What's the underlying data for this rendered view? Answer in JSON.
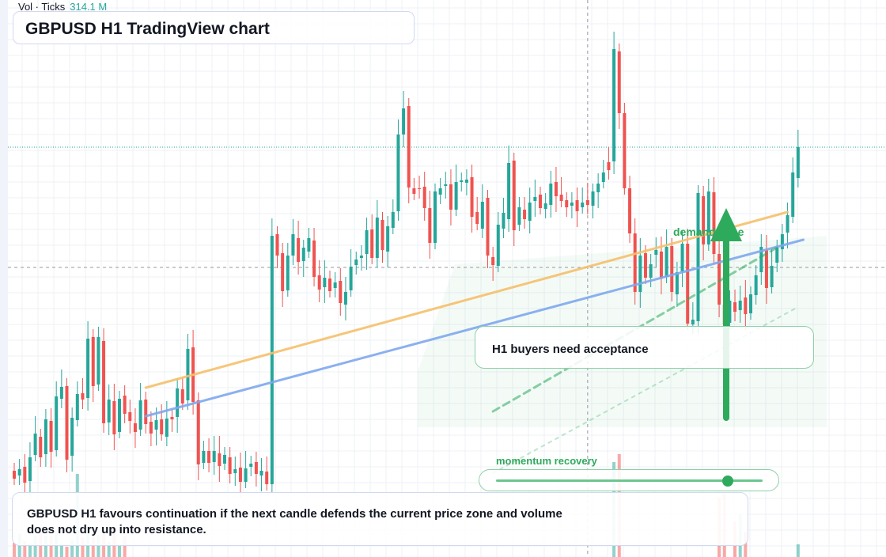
{
  "header": {
    "volume_label": "Vol · Ticks",
    "volume_value": "314.1 M",
    "title": "GBPUSD H1 TradingView chart"
  },
  "annotations": {
    "callout": "H1 buyers need acceptance",
    "demand_zone": "demand zone",
    "momentum": "momentum recovery",
    "momentum_level": 0.87,
    "note": "GBPUSD H1 favours continuation if the next candle defends the current price zone and volume does not dry up into resistance."
  },
  "colors": {
    "up": "#26a69a",
    "down": "#ef5350",
    "accent_green": "#2eaa5c",
    "trend_orange": "#f6c06c",
    "trend_blue": "#7fa8ee",
    "crosshair": "#9598a1",
    "last_price_line": "#26a69a"
  },
  "chart_data": {
    "type": "candlestick",
    "symbol": "GBPUSD",
    "timeframe": "H1",
    "price_scale": "arbitrary chart units (axis not labelled)",
    "candles": [
      [
        595,
        605
      ],
      [
        601,
        593
      ],
      [
        590,
        610
      ],
      [
        608,
        578
      ],
      [
        575,
        548
      ],
      [
        552,
        578
      ],
      [
        574,
        530
      ],
      [
        532,
        571
      ],
      [
        569,
        501
      ],
      [
        504,
        489
      ],
      [
        488,
        581
      ],
      [
        576,
        528
      ],
      [
        531,
        498
      ],
      [
        497,
        505
      ],
      [
        503,
        428
      ],
      [
        426,
        488
      ],
      [
        486,
        426
      ],
      [
        431,
        535
      ],
      [
        534,
        505
      ],
      [
        507,
        549
      ],
      [
        546,
        504
      ],
      [
        500,
        523
      ],
      [
        521,
        532
      ],
      [
        535,
        546
      ],
      [
        543,
        506
      ],
      [
        505,
        536
      ],
      [
        533,
        548
      ],
      [
        543,
        531
      ],
      [
        530,
        549
      ],
      [
        552,
        529
      ],
      [
        527,
        530
      ],
      [
        527,
        491
      ],
      [
        492,
        510
      ],
      [
        506,
        441
      ],
      [
        439,
        508
      ],
      [
        506,
        587
      ],
      [
        585,
        570
      ],
      [
        570,
        585
      ],
      [
        584,
        570
      ],
      [
        573,
        589
      ],
      [
        586,
        575
      ],
      [
        578,
        599
      ],
      [
        598,
        593
      ],
      [
        591,
        609
      ],
      [
        609,
        592
      ],
      [
        590,
        586
      ],
      [
        584,
        599
      ],
      [
        601,
        595
      ],
      [
        596,
        612
      ],
      [
        612,
        298
      ],
      [
        296,
        323
      ],
      [
        320,
        368
      ],
      [
        367,
        323
      ],
      [
        323,
        296
      ],
      [
        301,
        331
      ],
      [
        330,
        313
      ],
      [
        318,
        301
      ],
      [
        304,
        350
      ],
      [
        348,
        366
      ],
      [
        363,
        351
      ],
      [
        352,
        368
      ],
      [
        364,
        357
      ],
      [
        355,
        383
      ],
      [
        385,
        369
      ],
      [
        367,
        337
      ],
      [
        335,
        328
      ],
      [
        326,
        323
      ],
      [
        321,
        291
      ],
      [
        290,
        326
      ],
      [
        326,
        275
      ],
      [
        278,
        316
      ],
      [
        318,
        286
      ],
      [
        288,
        268
      ],
      [
        267,
        170
      ],
      [
        170,
        137
      ],
      [
        134,
        237
      ],
      [
        238,
        245
      ],
      [
        238,
        239
      ],
      [
        236,
        263
      ],
      [
        263,
        307
      ],
      [
        307,
        242
      ],
      [
        246,
        238
      ],
      [
        235,
        233
      ],
      [
        233,
        265
      ],
      [
        265,
        230
      ],
      [
        230,
        228
      ],
      [
        231,
        227
      ],
      [
        224,
        274
      ],
      [
        268,
        283
      ],
      [
        289,
        255
      ],
      [
        250,
        323
      ],
      [
        325,
        335
      ],
      [
        336,
        284
      ],
      [
        289,
        269
      ],
      [
        277,
        206
      ],
      [
        203,
        291
      ],
      [
        284,
        262
      ],
      [
        265,
        277
      ],
      [
        279,
        256
      ],
      [
        254,
        249
      ],
      [
        246,
        263
      ],
      [
        264,
        257
      ],
      [
        259,
        232
      ],
      [
        230,
        248
      ],
      [
        246,
        254
      ],
      [
        253,
        262
      ],
      [
        260,
        256
      ],
      [
        253,
        267
      ],
      [
        262,
        256
      ],
      [
        253,
        259
      ],
      [
        260,
        242
      ],
      [
        243,
        232
      ],
      [
        230,
        218
      ],
      [
        205,
        215
      ],
      [
        204,
        62
      ],
      [
        65,
        143
      ],
      [
        143,
        238
      ],
      [
        238,
        295
      ],
      [
        295,
        369
      ],
      [
        369,
        323
      ],
      [
        320,
        351
      ],
      [
        351,
        334
      ],
      [
        322,
        316
      ],
      [
        318,
        352
      ],
      [
        350,
        312
      ],
      [
        311,
        369
      ],
      [
        372,
        344
      ],
      [
        343,
        308
      ],
      [
        308,
        409
      ],
      [
        410,
        404
      ],
      [
        406,
        244
      ],
      [
        248,
        309
      ],
      [
        309,
        242
      ],
      [
        243,
        321
      ],
      [
        321,
        385
      ],
      [
        385,
        410
      ],
      [
        408,
        380
      ],
      [
        382,
        394
      ],
      [
        392,
        380
      ],
      [
        376,
        397
      ],
      [
        396,
        372
      ],
      [
        373,
        348
      ],
      [
        344,
        312
      ],
      [
        316,
        364
      ],
      [
        363,
        336
      ],
      [
        332,
        313
      ],
      [
        315,
        296
      ],
      [
        294,
        272
      ],
      [
        274,
        218
      ],
      [
        225,
        186
      ]
    ],
    "volume": [
      [
        18,
        0
      ],
      [
        29,
        0
      ],
      [
        20,
        0
      ],
      [
        17,
        0
      ],
      [
        26,
        0
      ],
      [
        30,
        0
      ],
      [
        27,
        0
      ],
      [
        27,
        0
      ],
      [
        32,
        0
      ],
      [
        17,
        0
      ],
      [
        13,
        0
      ],
      [
        21,
        0
      ],
      [
        105,
        0
      ],
      [
        25,
        0
      ],
      [
        32,
        0
      ],
      [
        37,
        0
      ],
      [
        28,
        0
      ],
      [
        29,
        0
      ],
      [
        19,
        0
      ],
      [
        35,
        0
      ],
      [
        15,
        0
      ],
      [
        26,
        0
      ],
      [
        0,
        0
      ],
      [
        0,
        0
      ],
      [
        0,
        0
      ],
      [
        0,
        0
      ],
      [
        0,
        0
      ],
      [
        0,
        0
      ],
      [
        0,
        0
      ],
      [
        0,
        0
      ],
      [
        0,
        0
      ],
      [
        0,
        0
      ],
      [
        0,
        0
      ],
      [
        0,
        0
      ],
      [
        0,
        0
      ],
      [
        0,
        0
      ],
      [
        0,
        0
      ],
      [
        0,
        0
      ],
      [
        0,
        0
      ],
      [
        0,
        0
      ],
      [
        0,
        0
      ],
      [
        0,
        0
      ],
      [
        0,
        0
      ],
      [
        0,
        0
      ],
      [
        0,
        0
      ],
      [
        0,
        0
      ],
      [
        0,
        0
      ],
      [
        0,
        0
      ],
      [
        0,
        0
      ],
      [
        0,
        0
      ],
      [
        0,
        0
      ],
      [
        0,
        0
      ],
      [
        0,
        0
      ],
      [
        0,
        0
      ],
      [
        0,
        0
      ],
      [
        0,
        0
      ],
      [
        0,
        0
      ],
      [
        0,
        0
      ],
      [
        0,
        0
      ],
      [
        0,
        0
      ],
      [
        0,
        0
      ],
      [
        0,
        0
      ],
      [
        0,
        0
      ],
      [
        0,
        0
      ],
      [
        0,
        0
      ],
      [
        0,
        0
      ],
      [
        0,
        0
      ],
      [
        0,
        0
      ],
      [
        0,
        0
      ],
      [
        0,
        0
      ],
      [
        0,
        0
      ],
      [
        0,
        0
      ],
      [
        0,
        0
      ],
      [
        0,
        0
      ],
      [
        0,
        0
      ],
      [
        0,
        0
      ],
      [
        0,
        0
      ],
      [
        0,
        0
      ],
      [
        0,
        0
      ],
      [
        0,
        0
      ],
      [
        0,
        0
      ],
      [
        0,
        0
      ],
      [
        0,
        0
      ],
      [
        0,
        0
      ],
      [
        0,
        0
      ],
      [
        0,
        0
      ],
      [
        0,
        0
      ],
      [
        0,
        0
      ],
      [
        0,
        0
      ],
      [
        0,
        0
      ],
      [
        0,
        0
      ],
      [
        0,
        0
      ],
      [
        0,
        0
      ],
      [
        0,
        0
      ],
      [
        0,
        0
      ],
      [
        0,
        0
      ],
      [
        0,
        0
      ],
      [
        0,
        0
      ],
      [
        0,
        0
      ],
      [
        0,
        0
      ],
      [
        0,
        0
      ],
      [
        0,
        0
      ],
      [
        0,
        0
      ],
      [
        0,
        0
      ],
      [
        0,
        0
      ],
      [
        0,
        0
      ],
      [
        0,
        0
      ],
      [
        0,
        0
      ],
      [
        0,
        0
      ],
      [
        0,
        0
      ],
      [
        0,
        0
      ],
      [
        0,
        0
      ],
      [
        0,
        0
      ],
      [
        0,
        0
      ],
      [
        120,
        0
      ],
      [
        130,
        0
      ],
      [
        0,
        0
      ],
      [
        0,
        0
      ],
      [
        0,
        0
      ],
      [
        0,
        0
      ],
      [
        0,
        0
      ],
      [
        0,
        0
      ],
      [
        0,
        0
      ],
      [
        0,
        0
      ],
      [
        0,
        0
      ],
      [
        0,
        0
      ],
      [
        0,
        0
      ],
      [
        0,
        0
      ],
      [
        0,
        0
      ],
      [
        0,
        0
      ],
      [
        0,
        0
      ],
      [
        0,
        0
      ],
      [
        0,
        0
      ],
      [
        0,
        0
      ],
      [
        75,
        0
      ],
      [
        80,
        0
      ],
      [
        0,
        0
      ],
      [
        45,
        0
      ],
      [
        55,
        0
      ],
      [
        32,
        0
      ],
      [
        0,
        0
      ],
      [
        0,
        0
      ],
      [
        0,
        0
      ],
      [
        0,
        0
      ],
      [
        0,
        0
      ],
      [
        0,
        0
      ],
      [
        0,
        0
      ],
      [
        0,
        0
      ],
      [
        0,
        0
      ],
      [
        16,
        0
      ]
    ],
    "last_price_level": 186,
    "crosshair": {
      "x_index": 109,
      "level": 338
    },
    "trendlines": [
      {
        "color": "orange",
        "from": [
          25,
          490
        ],
        "to": [
          147,
          268
        ]
      },
      {
        "color": "blue",
        "from": [
          25,
          526
        ],
        "to": [
          150,
          303
        ]
      },
      {
        "color": "green-dashed",
        "from": [
          91,
          520
        ],
        "to": [
          145,
          313
        ]
      },
      {
        "color": "green-dotted",
        "from": [
          91,
          598
        ],
        "to": [
          149,
          388
        ]
      }
    ],
    "grid": true,
    "volume_bars": true
  }
}
